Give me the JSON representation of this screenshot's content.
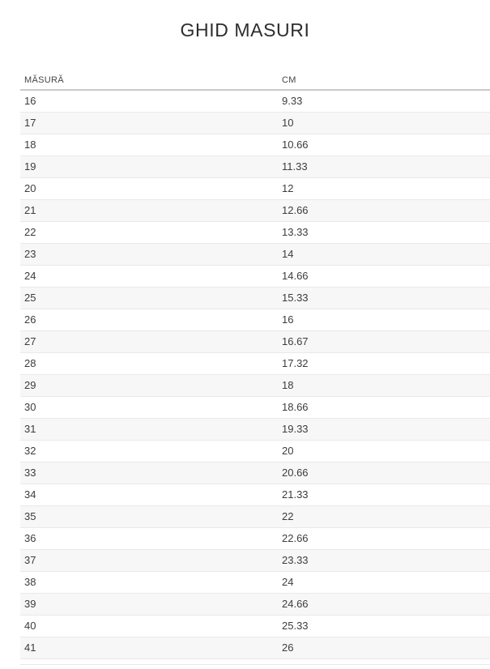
{
  "page": {
    "title": "GHID MASURI"
  },
  "table": {
    "headers": [
      "MĂSURĂ",
      "CM"
    ],
    "rows": [
      [
        "16",
        "9.33"
      ],
      [
        "17",
        "10"
      ],
      [
        "18",
        "10.66"
      ],
      [
        "19",
        "11.33"
      ],
      [
        "20",
        "12"
      ],
      [
        "21",
        "12.66"
      ],
      [
        "22",
        "13.33"
      ],
      [
        "23",
        "14"
      ],
      [
        "24",
        "14.66"
      ],
      [
        "25",
        "15.33"
      ],
      [
        "26",
        "16"
      ],
      [
        "27",
        "16.67"
      ],
      [
        "28",
        "17.32"
      ],
      [
        "29",
        "18"
      ],
      [
        "30",
        "18.66"
      ],
      [
        "31",
        "19.33"
      ],
      [
        "32",
        "20"
      ],
      [
        "33",
        "20.66"
      ],
      [
        "34",
        "21.33"
      ],
      [
        "35",
        "22"
      ],
      [
        "36",
        "22.66"
      ],
      [
        "37",
        "23.33"
      ],
      [
        "38",
        "24"
      ],
      [
        "39",
        "24.66"
      ],
      [
        "40",
        "25.33"
      ],
      [
        "41",
        "26"
      ]
    ]
  },
  "colors": {
    "title_text": "#2d2d2d",
    "cell_text": "#3c3c3c",
    "header_text": "#454545",
    "alt_row_bg": "#f7f7f7",
    "row_border": "#e9e9e9",
    "header_border": "#c9c9c9"
  }
}
